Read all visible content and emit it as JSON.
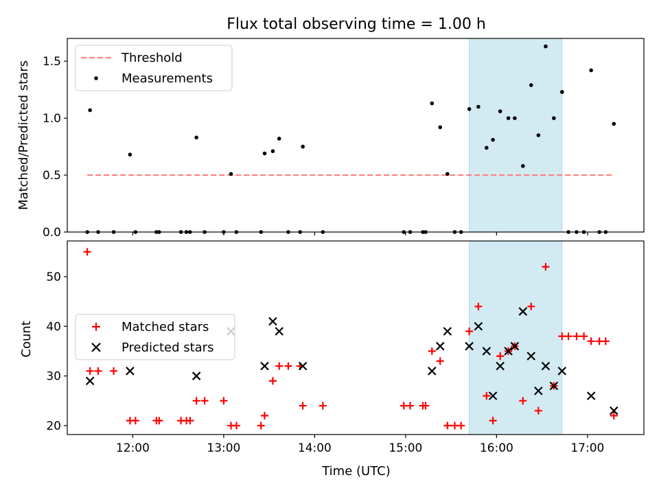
{
  "title": "Flux total observing time = 1.00 h",
  "colors": {
    "threshold": "#ff7f7f",
    "measurements": "#000000",
    "matched": "#ff0000",
    "predicted": "#000000",
    "highlight": "#add8e6"
  },
  "chart_data": [
    {
      "type": "scatter",
      "ylabel": "Matched/Predicted stars",
      "xlabel": "",
      "xlim": [
        11.28,
        17.62
      ],
      "ylim": [
        0,
        1.7
      ],
      "grid": false,
      "legend": "top-left",
      "yticks": [
        0.0,
        0.5,
        1.0,
        1.5
      ],
      "ytick_labels": [
        "0.0",
        "0.5",
        "1.0",
        "1.5"
      ],
      "xticks": [
        12,
        13,
        14,
        15,
        16,
        17
      ],
      "highlight_span": [
        15.7,
        16.72
      ],
      "threshold": {
        "name": "Threshold",
        "value": 0.5,
        "x_range": [
          11.5,
          17.28
        ]
      },
      "series": [
        {
          "name": "Measurements",
          "x": [
            11.5,
            11.53,
            11.62,
            11.79,
            11.97,
            12.03,
            12.26,
            12.29,
            12.53,
            12.59,
            12.63,
            12.7,
            12.79,
            13.0,
            13.08,
            13.14,
            13.41,
            13.45,
            13.54,
            13.61,
            13.71,
            13.84,
            13.87,
            14.09,
            14.98,
            15.05,
            15.19,
            15.22,
            15.29,
            15.38,
            15.46,
            15.54,
            15.61,
            15.7,
            15.8,
            15.89,
            15.96,
            16.04,
            16.13,
            16.2,
            16.29,
            16.38,
            16.46,
            16.54,
            16.63,
            16.72,
            16.79,
            16.88,
            16.96,
            17.04,
            17.13,
            17.2,
            17.29
          ],
          "y": [
            0.0,
            1.07,
            0.0,
            0.0,
            0.68,
            0.0,
            0.0,
            0.0,
            0.0,
            0.0,
            0.0,
            0.83,
            0.0,
            0.0,
            0.51,
            0.0,
            0.0,
            0.69,
            0.71,
            0.82,
            0.0,
            0.0,
            0.75,
            0.0,
            0.0,
            0.0,
            0.0,
            0.0,
            1.13,
            0.92,
            0.51,
            0.0,
            0.0,
            1.08,
            1.1,
            0.74,
            0.81,
            1.06,
            1.0,
            1.0,
            0.58,
            1.29,
            0.85,
            1.63,
            1.0,
            1.23,
            0.0,
            0.0,
            0.0,
            1.42,
            0.0,
            0.0,
            0.95
          ]
        }
      ]
    },
    {
      "type": "scatter",
      "ylabel": "Count",
      "xlabel": "Time (UTC)",
      "xlim": [
        11.28,
        17.62
      ],
      "ylim": [
        18.2,
        57.2
      ],
      "grid": false,
      "legend": "center-left",
      "yticks": [
        20,
        30,
        40,
        50
      ],
      "ytick_labels": [
        "20",
        "30",
        "40",
        "50"
      ],
      "xticks": [
        12,
        13,
        14,
        15,
        16,
        17
      ],
      "xtick_labels": [
        "12:00",
        "13:00",
        "14:00",
        "15:00",
        "16:00",
        "17:00"
      ],
      "highlight_span": [
        15.7,
        16.72
      ],
      "series": [
        {
          "name": "Matched stars",
          "marker": "plus",
          "x": [
            11.5,
            11.53,
            11.62,
            11.79,
            11.97,
            12.03,
            12.26,
            12.29,
            12.53,
            12.59,
            12.63,
            12.7,
            12.79,
            13.0,
            13.08,
            13.14,
            13.41,
            13.45,
            13.54,
            13.61,
            13.71,
            13.84,
            13.87,
            14.09,
            14.98,
            15.05,
            15.19,
            15.22,
            15.29,
            15.38,
            15.46,
            15.54,
            15.61,
            15.7,
            15.8,
            15.89,
            15.96,
            16.04,
            16.13,
            16.2,
            16.29,
            16.38,
            16.46,
            16.54,
            16.63,
            16.72,
            16.79,
            16.88,
            16.96,
            17.04,
            17.13,
            17.2,
            17.29
          ],
          "y": [
            55,
            31,
            31,
            31,
            21,
            21,
            21,
            21,
            21,
            21,
            21,
            25,
            25,
            25,
            20,
            20,
            20,
            22,
            29,
            32,
            32,
            32,
            24,
            24,
            24,
            24,
            24,
            24,
            35,
            33,
            20,
            20,
            20,
            39,
            44,
            26,
            21,
            34,
            35,
            36,
            25,
            44,
            23,
            52,
            28,
            38,
            38,
            38,
            38,
            37,
            37,
            37,
            22
          ]
        },
        {
          "name": "Predicted stars",
          "marker": "x",
          "x": [
            11.53,
            11.97,
            12.7,
            13.08,
            13.45,
            13.54,
            13.61,
            13.87,
            15.29,
            15.38,
            15.46,
            15.7,
            15.8,
            15.89,
            15.96,
            16.04,
            16.13,
            16.2,
            16.29,
            16.38,
            16.46,
            16.54,
            16.63,
            16.72,
            17.04,
            17.29
          ],
          "y": [
            29,
            31,
            30,
            39,
            32,
            41,
            39,
            32,
            31,
            36,
            39,
            36,
            40,
            35,
            26,
            32,
            35,
            36,
            43,
            34,
            27,
            32,
            28,
            31,
            26,
            23
          ]
        }
      ]
    }
  ]
}
